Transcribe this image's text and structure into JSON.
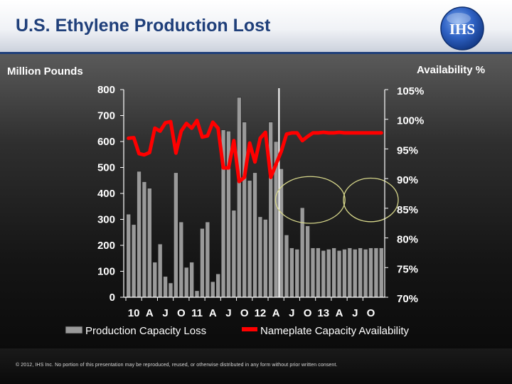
{
  "header": {
    "title": "U.S. Ethylene Production Lost",
    "logo_text": "IHS"
  },
  "footer": {
    "copyright": "© 2012, IHS Inc. No portion of this presentation may be reproduced, reused, or otherwise distributed in any form without prior written consent."
  },
  "colors": {
    "title": "#1f3f7a",
    "bar_fill": "#9a9a9a",
    "line": "#ff0000",
    "highlight_circle": "#d6d68a"
  },
  "chart_data": {
    "type": "bar",
    "left_axis_label": "Million Pounds",
    "right_axis_label": "Availability %",
    "ylim": [
      0,
      800
    ],
    "y_ticks": [
      800,
      700,
      600,
      500,
      400,
      300,
      200,
      100,
      0
    ],
    "y2lim": [
      70,
      105
    ],
    "y2_ticks": [
      "105%",
      "100%",
      "95%",
      "90%",
      "85%",
      "80%",
      "75%",
      "70%"
    ],
    "y2_tick_values": [
      105,
      100,
      95,
      90,
      85,
      80,
      75,
      70
    ],
    "x_tick_labels": [
      "10",
      "A",
      "J",
      "O",
      "11",
      "A",
      "J",
      "O",
      "12",
      "A",
      "J",
      "O",
      "13",
      "A",
      "J",
      "O"
    ],
    "x_tick_months": [
      0,
      3,
      6,
      9,
      12,
      15,
      18,
      21,
      24,
      27,
      30,
      33,
      36,
      39,
      42,
      45
    ],
    "actual_forecast_divider_month": 29,
    "series": [
      {
        "name": "Production Capacity Loss",
        "type": "bar",
        "values": [
          320,
          280,
          485,
          445,
          420,
          135,
          205,
          80,
          55,
          480,
          290,
          115,
          135,
          25,
          265,
          290,
          60,
          90,
          645,
          640,
          335,
          770,
          675,
          450,
          480,
          310,
          300,
          675,
          600,
          495,
          240,
          190,
          185,
          345,
          275,
          190,
          190,
          180,
          185,
          190,
          180,
          185,
          190,
          185,
          190,
          185,
          190,
          190,
          190
        ]
      },
      {
        "name": "Nameplate Capacity Availability",
        "type": "line",
        "values": [
          96.8,
          96.9,
          94.2,
          94.0,
          94.4,
          98.5,
          98.0,
          99.4,
          99.6,
          94.3,
          98.0,
          99.3,
          98.5,
          99.8,
          97.0,
          97.2,
          99.5,
          98.5,
          91.8,
          91.8,
          96.4,
          89.5,
          90.2,
          96.0,
          92.8,
          96.8,
          97.8,
          90.2,
          92.4,
          94.6,
          97.5,
          97.7,
          97.7,
          96.4,
          97.1,
          97.7,
          97.7,
          97.8,
          97.7,
          97.7,
          97.8,
          97.7,
          97.7,
          97.7,
          97.7,
          97.7,
          97.7,
          97.7,
          97.7
        ]
      }
    ],
    "highlight_circles": [
      {
        "cx_month": 34.5,
        "cy_value": 375,
        "rx_months": 6.6,
        "ry_value": 90
      },
      {
        "cx_month": 46.0,
        "cy_value": 375,
        "rx_months": 5.2,
        "ry_value": 84
      }
    ],
    "legend": {
      "placement": "bottom",
      "items": [
        "Production Capacity Loss",
        "Nameplate Capacity Availability"
      ]
    },
    "grid": false
  }
}
